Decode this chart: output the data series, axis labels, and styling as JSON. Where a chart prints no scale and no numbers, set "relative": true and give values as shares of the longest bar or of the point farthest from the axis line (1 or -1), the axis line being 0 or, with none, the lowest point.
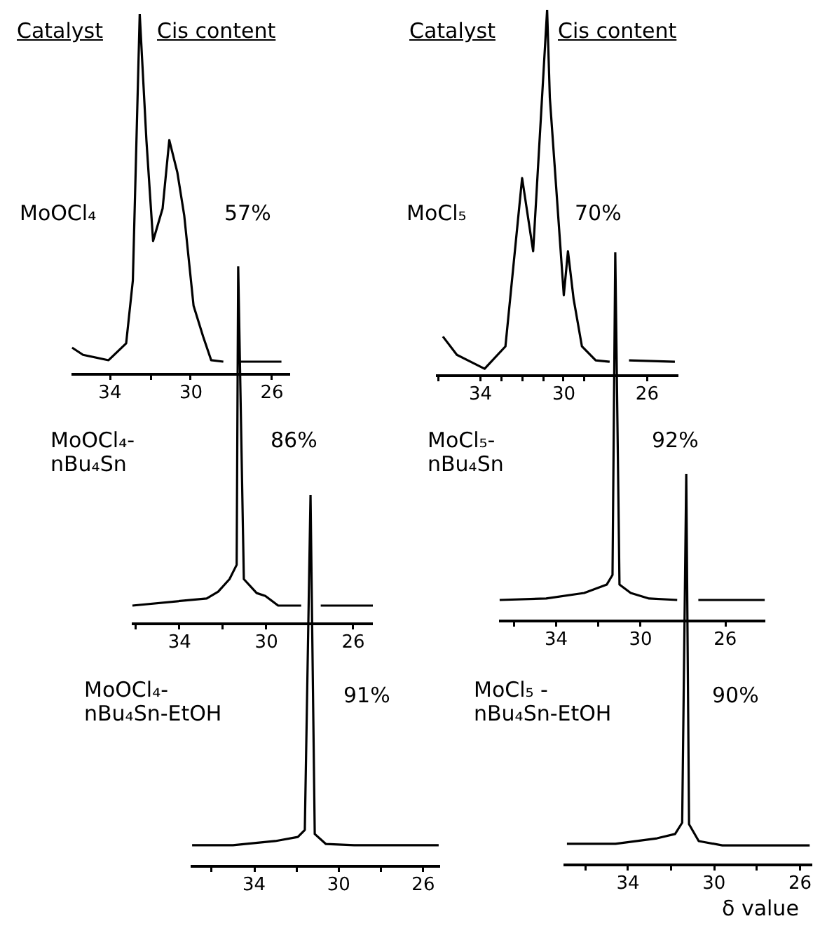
{
  "chart_data": [
    {
      "type": "line",
      "title": "MoOCl₄",
      "subtitle": "57%",
      "annotations": [
        "Catalyst",
        "Cis content"
      ],
      "relative": true,
      "legend": false,
      "grid": false,
      "x": [
        35.87,
        35.33,
        34.07,
        33.2,
        32.87,
        32.53,
        32.2,
        31.87,
        31.4,
        31.07,
        30.67,
        30.33,
        29.87,
        29.4,
        29.0,
        28.4,
        null,
        27.67,
        25.53
      ],
      "series": [
        {
          "color": "#000000",
          "values": [
            0.074,
            0.054,
            0.039,
            0.086,
            0.26,
            1,
            0.65,
            0.37,
            0.46,
            0.65,
            0.56,
            0.44,
            0.19,
            0.105,
            0.039,
            0.035,
            null,
            0.035,
            0.035
          ]
        }
      ],
      "xlim": [
        35.9,
        25.1
      ],
      "xticks": [
        34,
        {
          "value": 32,
          "label": null
        },
        30,
        26
      ]
    },
    {
      "type": "line",
      "title": "MoCl₅",
      "subtitle": "70%",
      "annotations": [
        "Catalyst",
        "Cis content"
      ],
      "relative": true,
      "legend": false,
      "grid": false,
      "x": [
        35.8,
        35.13,
        33.8,
        32.8,
        32.0,
        31.47,
        30.8,
        30.67,
        30.0,
        29.8,
        29.53,
        29.13,
        28.47,
        27.8,
        null,
        26.87,
        24.67
      ],
      "series": [
        {
          "color": "#000000",
          "values": [
            0.107,
            0.057,
            0.019,
            0.08,
            0.54,
            0.34,
            1,
            0.76,
            0.22,
            0.34,
            0.21,
            0.08,
            0.042,
            0.038,
            null,
            0.042,
            0.038
          ]
        }
      ],
      "xlim": [
        36.1,
        24.5
      ],
      "xticks": [
        {
          "value": 36,
          "label": null
        },
        34,
        {
          "value": 33,
          "label": null
        },
        {
          "value": 32,
          "label": null
        },
        {
          "value": 31,
          "label": null
        },
        30,
        {
          "value": 29,
          "label": null
        },
        26
      ]
    },
    {
      "type": "line",
      "title": "MoOCl₄-\nnBu₄Sn",
      "subtitle": "86%",
      "relative": true,
      "legend": false,
      "grid": false,
      "x": [
        36.17,
        32.75,
        32.22,
        31.7,
        31.37,
        31.3,
        31.04,
        30.45,
        30.05,
        29.46,
        28.4,
        null,
        27.5,
        25.1
      ],
      "series": [
        {
          "color": "#000000",
          "values": [
            0.051,
            0.071,
            0.09,
            0.125,
            0.165,
            1,
            0.125,
            0.086,
            0.078,
            0.051,
            0.051,
            null,
            0.051,
            0.051
          ]
        }
      ],
      "xlim": [
        36.2,
        25.1
      ],
      "xticks": [
        {
          "value": 36,
          "label": null
        },
        34,
        {
          "value": 32,
          "label": null
        },
        30,
        26
      ]
    },
    {
      "type": "line",
      "title": "MoCl₅-\nnBu₄Sn",
      "subtitle": "92%",
      "relative": true,
      "legend": false,
      "grid": false,
      "x": [
        36.67,
        34.47,
        32.67,
        31.6,
        31.33,
        31.2,
        31.0,
        30.47,
        29.6,
        28.27,
        null,
        27.27,
        24.13
      ],
      "series": [
        {
          "color": "#000000",
          "values": [
            0.057,
            0.061,
            0.076,
            0.099,
            0.125,
            1,
            0.099,
            0.076,
            0.061,
            0.057,
            null,
            0.057,
            0.057
          ]
        }
      ],
      "xlim": [
        36.7,
        24.1
      ],
      "xticks": [
        {
          "value": 36,
          "label": null
        },
        34,
        {
          "value": 32,
          "label": null
        },
        30,
        26
      ]
    },
    {
      "type": "line",
      "title": "MoOCl₄-\nnBu₄Sn-EtOH",
      "subtitle": "91%",
      "relative": true,
      "legend": false,
      "grid": false,
      "x": [
        36.93,
        35.0,
        33.0,
        31.93,
        31.6,
        31.33,
        31.13,
        30.6,
        29.27,
        26.8,
        25.27
      ],
      "series": [
        {
          "color": "#000000",
          "values": [
            0.057,
            0.057,
            0.068,
            0.079,
            0.098,
            1,
            0.087,
            0.06,
            0.057,
            0.057,
            0.057
          ]
        }
      ],
      "xlim": [
        37.0,
        25.2
      ],
      "xticks": [
        {
          "value": 36,
          "label": null
        },
        34,
        {
          "value": 32,
          "label": null
        },
        30,
        {
          "value": 28,
          "label": null
        },
        26
      ]
    },
    {
      "type": "line",
      "title": "MoCl₅ -\nnBu₄Sn-EtOH",
      "subtitle": "90%",
      "xlabel": "δ value",
      "relative": true,
      "legend": false,
      "grid": false,
      "x": [
        36.84,
        34.58,
        32.65,
        31.81,
        31.48,
        31.29,
        31.16,
        30.71,
        29.61,
        25.55
      ],
      "series": [
        {
          "color": "#000000",
          "values": [
            0.054,
            0.054,
            0.068,
            0.079,
            0.108,
            1,
            0.104,
            0.061,
            0.05,
            0.05
          ]
        }
      ],
      "xlim": [
        37.0,
        25.5
      ],
      "xticks": [
        {
          "value": 36,
          "label": null
        },
        34,
        {
          "value": 32,
          "label": null
        },
        30,
        {
          "value": 28,
          "label": null
        },
        26
      ]
    }
  ]
}
